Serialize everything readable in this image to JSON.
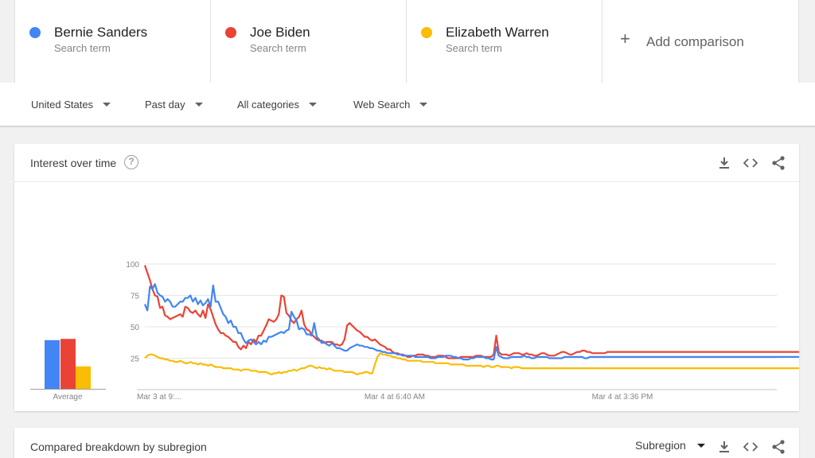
{
  "comparison": {
    "terms": [
      {
        "name": "Bernie Sanders",
        "subtitle": "Search term",
        "color": "#4285f4"
      },
      {
        "name": "Joe Biden",
        "subtitle": "Search term",
        "color": "#ea4335"
      },
      {
        "name": "Elizabeth Warren",
        "subtitle": "Search term",
        "color": "#fbbc04"
      }
    ],
    "add_label": "Add comparison"
  },
  "filters": {
    "region": "United States",
    "time": "Past day",
    "category": "All categories",
    "search_type": "Web Search"
  },
  "interest_card": {
    "title": "Interest over time",
    "help_icon": "help-circle-icon",
    "tools": [
      "download-icon",
      "embed-code-icon",
      "share-icon"
    ]
  },
  "breakdown_card": {
    "title": "Compared breakdown by subregion",
    "select_value": "Subregion"
  },
  "chart_data": {
    "type": "line",
    "ylim": [
      0,
      100
    ],
    "yticks": [
      25,
      50,
      75,
      100
    ],
    "x_tick_labels": [
      "Mar 3 at 9:...",
      "Mar 4 at 6:40 AM",
      "Mar 4 at 3:36 PM"
    ],
    "x_tick_positions": [
      0,
      90,
      180
    ],
    "n_points": 251,
    "average_label": "Average",
    "averages": [
      39,
      40,
      18
    ],
    "series": [
      {
        "name": "Bernie Sanders",
        "color": "#4285f4",
        "values": [
          68,
          63,
          82,
          80,
          84,
          77,
          75,
          74,
          70,
          72,
          70,
          66,
          66,
          68,
          70,
          70,
          73,
          73,
          75,
          70,
          73,
          68,
          71,
          67,
          69,
          72,
          66,
          83,
          70,
          70,
          65,
          60,
          58,
          53,
          55,
          50,
          50,
          45,
          45,
          40,
          37,
          39,
          40,
          38,
          36,
          38,
          36,
          39,
          38,
          42,
          42,
          43,
          44,
          45,
          46,
          45,
          47,
          48,
          62,
          58,
          55,
          48,
          49,
          48,
          44,
          44,
          43,
          53,
          42,
          40,
          37,
          38,
          36,
          35,
          37,
          35,
          33,
          33,
          32,
          31,
          31,
          33,
          34,
          35,
          36,
          35,
          35,
          34,
          34,
          33,
          33,
          32,
          31,
          31,
          30,
          30,
          29,
          29,
          29,
          29,
          28,
          28,
          27,
          27,
          27,
          27,
          27,
          26,
          26,
          26,
          26,
          26,
          26,
          25,
          25,
          25,
          26,
          26,
          26,
          27,
          27,
          27,
          26,
          26,
          25,
          25,
          24,
          24,
          24,
          25,
          25,
          26,
          26,
          26,
          26,
          25,
          25,
          24,
          24,
          34,
          27,
          26,
          25,
          25,
          25,
          26,
          26,
          26,
          26,
          26,
          27,
          26,
          26,
          25,
          25,
          26,
          26,
          26,
          26,
          26,
          25,
          25,
          25,
          25,
          25,
          25,
          26,
          26,
          26,
          26,
          26,
          26,
          26,
          26,
          25,
          25,
          26,
          26,
          26,
          26,
          26,
          26,
          26,
          26,
          26,
          26,
          26,
          26,
          26,
          26,
          26,
          26,
          26,
          26,
          26,
          26,
          26,
          26,
          26,
          26,
          26,
          26,
          26,
          26,
          26,
          26,
          26,
          26,
          26,
          26,
          26,
          26,
          26,
          26,
          26,
          26,
          26,
          26,
          26,
          26,
          26,
          26,
          26,
          26,
          26,
          26,
          26,
          26,
          26,
          26,
          26,
          26,
          26,
          26,
          26,
          26,
          26,
          26,
          26,
          26,
          26,
          26,
          26,
          26,
          26,
          26,
          26,
          26,
          26,
          26,
          26,
          26,
          26,
          26,
          26,
          26,
          26,
          26,
          26,
          26,
          26,
          26
        ]
      },
      {
        "name": "Joe Biden",
        "color": "#ea4335",
        "values": [
          99,
          93,
          87,
          80,
          75,
          74,
          65,
          66,
          59,
          58,
          56,
          57,
          58,
          59,
          60,
          58,
          66,
          65,
          62,
          61,
          63,
          60,
          58,
          63,
          57,
          68,
          64,
          58,
          52,
          48,
          45,
          45,
          43,
          42,
          40,
          38,
          38,
          34,
          32,
          35,
          33,
          38,
          36,
          40,
          38,
          43,
          43,
          47,
          51,
          56,
          55,
          54,
          56,
          60,
          75,
          74,
          61,
          59,
          55,
          53,
          56,
          58,
          63,
          52,
          48,
          47,
          44,
          42,
          40,
          39,
          39,
          37,
          38,
          38,
          38,
          36,
          36,
          35,
          36,
          40,
          51,
          53,
          51,
          49,
          47,
          46,
          44,
          42,
          42,
          40,
          39,
          40,
          38,
          36,
          35,
          34,
          32,
          32,
          30,
          29,
          29,
          28,
          28,
          27,
          26,
          26,
          27,
          27,
          28,
          28,
          28,
          27,
          27,
          26,
          26,
          26,
          27,
          27,
          27,
          26,
          25,
          25,
          25,
          25,
          25,
          26,
          26,
          26,
          26,
          26,
          26,
          27,
          27,
          27,
          26,
          26,
          26,
          26,
          28,
          43,
          30,
          28,
          28,
          28,
          27,
          28,
          29,
          29,
          29,
          28,
          28,
          29,
          28,
          28,
          27,
          27,
          28,
          29,
          29,
          28,
          27,
          27,
          27,
          28,
          29,
          30,
          30,
          29,
          28,
          28,
          29,
          30,
          30,
          31,
          31,
          30,
          30,
          29,
          29,
          29,
          29,
          29,
          29,
          30,
          30,
          30,
          30,
          30,
          30,
          30,
          30,
          30,
          30,
          30,
          30,
          30,
          30,
          30,
          30,
          30,
          30,
          30,
          30,
          30,
          30,
          30,
          30,
          30,
          30,
          30,
          30,
          30,
          30,
          30,
          30,
          30,
          30,
          30,
          30,
          30,
          30,
          30,
          30,
          30,
          30,
          30,
          30,
          30,
          30,
          30,
          30,
          30,
          30,
          30,
          30,
          30,
          30,
          30,
          30,
          30,
          30,
          30,
          30,
          30,
          30,
          30,
          30,
          30,
          30,
          30,
          30,
          30,
          30,
          30,
          30,
          30,
          30,
          30,
          30,
          30
        ]
      },
      {
        "name": "Elizabeth Warren",
        "color": "#fbbc04",
        "values": [
          25,
          27,
          28,
          28,
          27,
          26,
          25,
          25,
          24,
          24,
          23,
          23,
          22,
          22,
          23,
          22,
          21,
          21,
          22,
          21,
          21,
          20,
          21,
          20,
          20,
          19,
          20,
          19,
          18,
          18,
          18,
          17,
          17,
          17,
          17,
          16,
          16,
          16,
          15,
          16,
          16,
          16,
          15,
          15,
          15,
          14,
          14,
          14,
          14,
          13,
          12,
          13,
          13,
          14,
          13,
          14,
          14,
          15,
          15,
          16,
          15,
          16,
          17,
          17,
          18,
          19,
          19,
          18,
          17,
          18,
          17,
          17,
          16,
          17,
          16,
          15,
          15,
          15,
          15,
          14,
          14,
          14,
          14,
          13,
          12,
          13,
          13,
          14,
          14,
          13,
          13,
          20,
          26,
          29,
          28,
          28,
          27,
          27,
          26,
          26,
          25,
          25,
          24,
          24,
          23,
          23,
          23,
          23,
          23,
          23,
          22,
          22,
          22,
          22,
          22,
          21,
          21,
          21,
          21,
          21,
          21,
          20,
          20,
          20,
          20,
          20,
          20,
          19,
          19,
          19,
          19,
          19,
          19,
          19,
          18,
          19,
          19,
          18,
          18,
          19,
          19,
          18,
          18,
          18,
          18,
          17,
          18,
          18,
          18,
          17,
          17,
          17,
          17,
          17,
          17,
          17,
          17,
          17,
          17,
          17,
          17,
          17,
          17,
          17,
          17,
          17,
          17,
          17,
          17,
          17,
          17,
          17,
          17,
          17,
          17,
          17,
          17,
          17,
          17,
          17,
          17,
          17,
          17,
          17,
          17,
          17,
          17,
          17,
          17,
          17,
          17,
          17,
          17,
          17,
          17,
          17,
          17,
          17,
          17,
          17,
          17,
          17,
          17,
          17,
          17,
          17,
          17,
          17,
          17,
          17,
          17,
          17,
          17,
          17,
          17,
          17,
          17,
          17,
          17,
          17,
          17,
          17,
          17,
          17,
          17,
          17,
          17,
          17,
          17,
          17,
          17,
          17,
          17,
          17,
          17,
          17,
          17,
          17,
          17,
          17,
          17,
          17,
          17,
          17,
          17,
          17,
          17,
          17,
          17,
          17,
          17,
          17,
          17,
          17,
          17,
          17,
          17,
          17,
          17,
          17,
          17,
          17
        ]
      }
    ]
  }
}
